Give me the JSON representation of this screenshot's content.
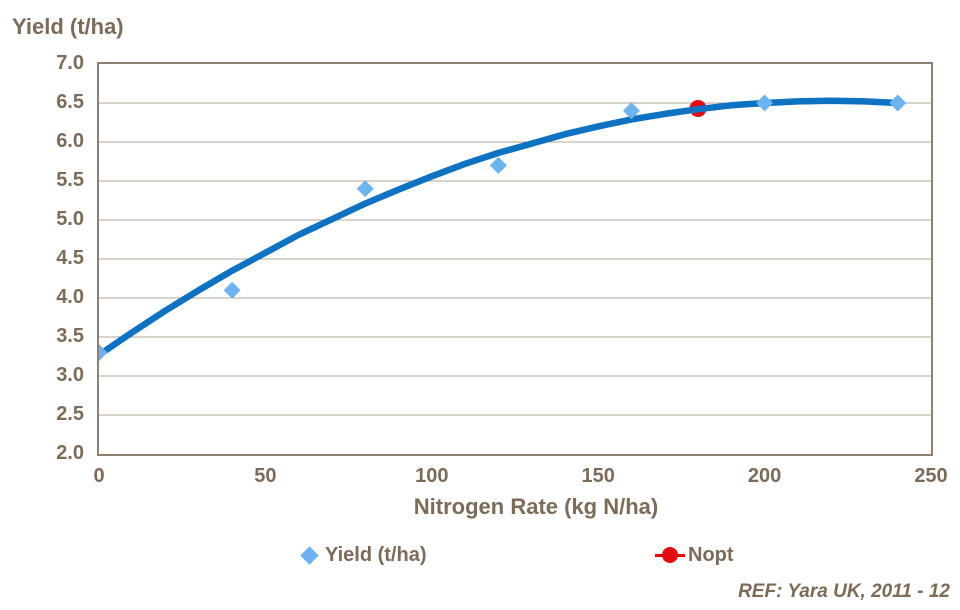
{
  "colors": {
    "text": "#7c6b58",
    "grid": "#b3a492",
    "plot_border": "#8f8070",
    "curve": "#0e72c3",
    "yield_marker": "#6cb3f1",
    "nopt_marker": "#e60c0c"
  },
  "chart_data": {
    "type": "scatter",
    "y_axis_title": "Yield (t/ha)",
    "x_axis_title": "Nitrogen Rate (kg N/ha)",
    "xlim": [
      0,
      250
    ],
    "ylim": [
      2.0,
      7.0
    ],
    "x_ticks": [
      "0",
      "50",
      "100",
      "150",
      "200",
      "250"
    ],
    "y_ticks": [
      "7.0",
      "6.5",
      "6.0",
      "5.5",
      "5.0",
      "4.5",
      "4.0",
      "3.5",
      "3.0",
      "2.5",
      "2.0"
    ],
    "grid": "horizontal-only",
    "legend_position": "bottom",
    "series": [
      {
        "name": "Yield (t/ha)",
        "type": "scatter",
        "marker": "diamond",
        "color": "#6cb3f1",
        "layer": 3,
        "points": [
          [
            0,
            3.3
          ],
          [
            40,
            4.1
          ],
          [
            80,
            5.4
          ],
          [
            120,
            5.7
          ],
          [
            160,
            6.4
          ],
          [
            200,
            6.5
          ],
          [
            240,
            6.5
          ]
        ]
      },
      {
        "name": "Yield trend curve",
        "type": "line",
        "color": "#0e72c3",
        "layer": 2,
        "points": [
          [
            0,
            3.27
          ],
          [
            10,
            3.56
          ],
          [
            20,
            3.84
          ],
          [
            30,
            4.1
          ],
          [
            40,
            4.35
          ],
          [
            50,
            4.58
          ],
          [
            60,
            4.81
          ],
          [
            70,
            5.01
          ],
          [
            80,
            5.21
          ],
          [
            90,
            5.39
          ],
          [
            100,
            5.56
          ],
          [
            110,
            5.72
          ],
          [
            120,
            5.86
          ],
          [
            130,
            5.98
          ],
          [
            140,
            6.1
          ],
          [
            150,
            6.2
          ],
          [
            160,
            6.29
          ],
          [
            170,
            6.36
          ],
          [
            180,
            6.42
          ],
          [
            190,
            6.47
          ],
          [
            200,
            6.5
          ],
          [
            210,
            6.52
          ],
          [
            220,
            6.53
          ],
          [
            230,
            6.52
          ],
          [
            240,
            6.5
          ]
        ]
      },
      {
        "name": "Nopt",
        "type": "scatter",
        "marker": "circle",
        "color": "#e60c0c",
        "layer": 1,
        "points": [
          [
            180,
            6.43
          ]
        ]
      }
    ],
    "legend": [
      {
        "label": "Yield (t/ha)",
        "marker": "diamond",
        "color": "#6cb3f1"
      },
      {
        "label": "Nopt",
        "marker": "line-circle",
        "color": "#e60c0c"
      }
    ],
    "footnote": "REF: Yara UK, 2011 - 12"
  }
}
